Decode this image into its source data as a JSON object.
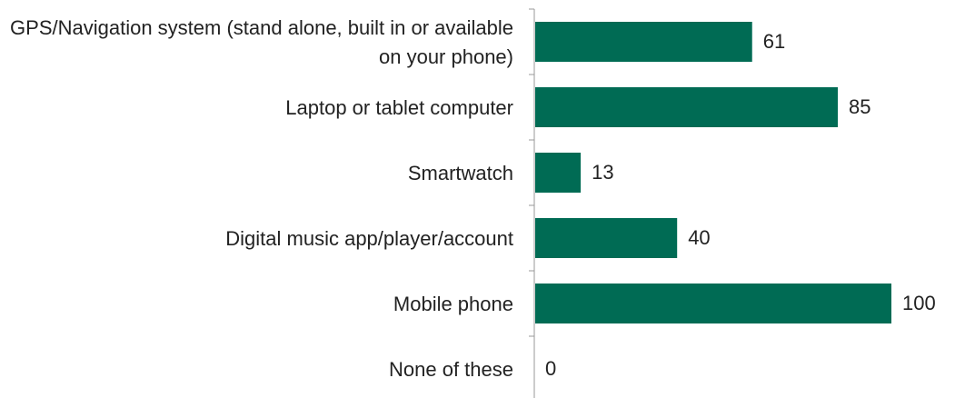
{
  "chart_data": {
    "type": "bar",
    "orientation": "horizontal",
    "categories": [
      "GPS/Navigation system (stand alone, built in or available on your phone)",
      "Laptop or tablet computer",
      "Smartwatch",
      "Digital music app/player/account",
      "Mobile phone",
      "None of these"
    ],
    "values": [
      61,
      85,
      13,
      40,
      100,
      0
    ],
    "color": "#006b54"
  }
}
